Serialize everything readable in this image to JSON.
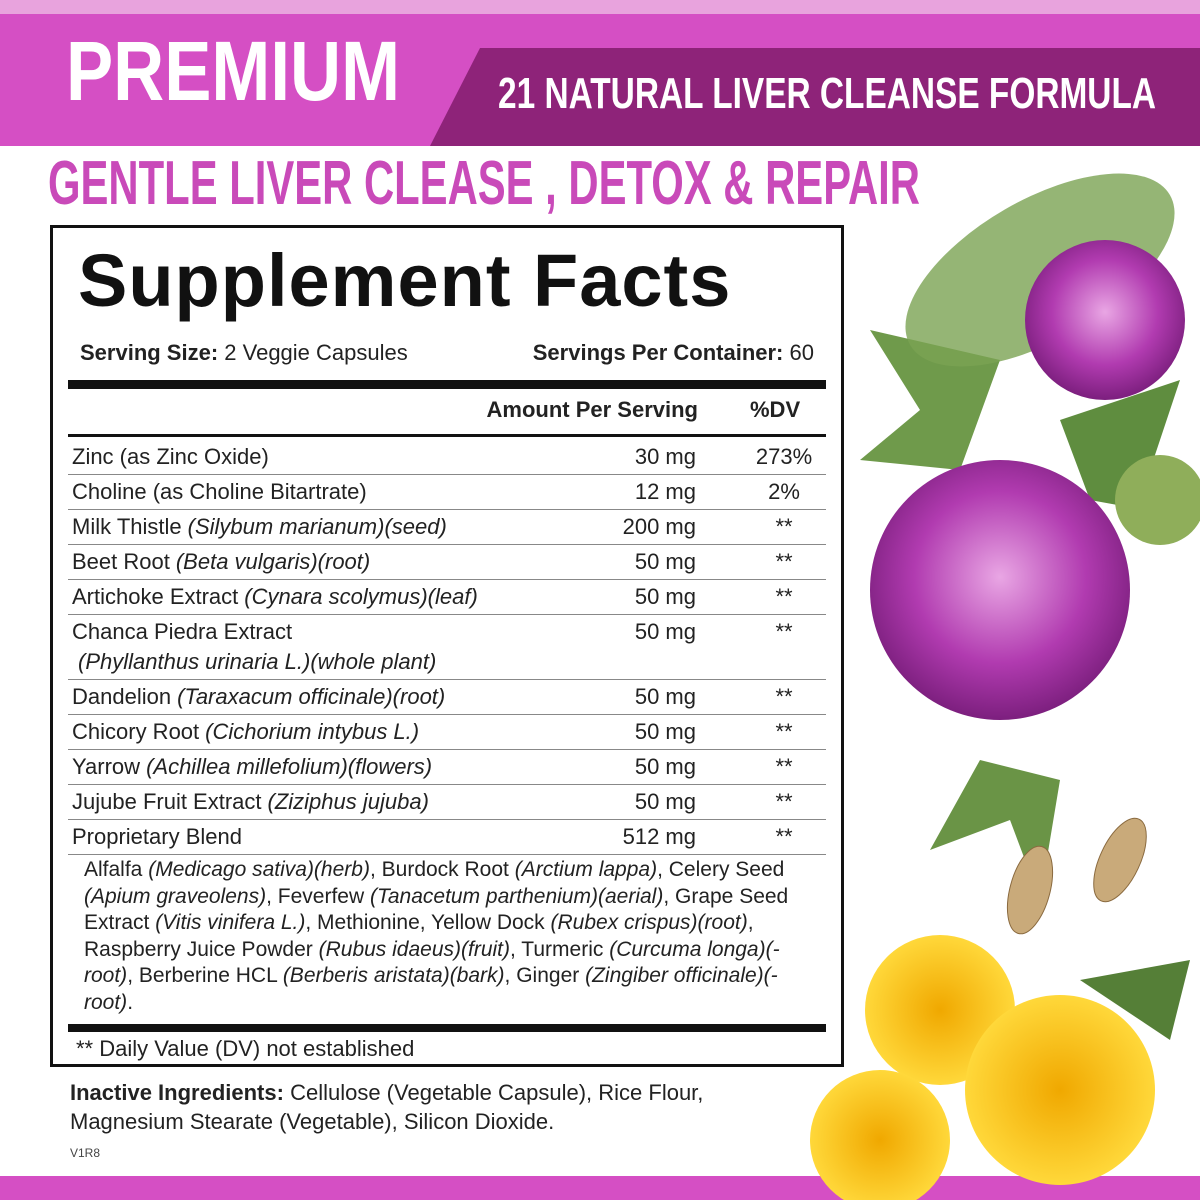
{
  "header": {
    "badge": "PREMIUM",
    "banner": "21 NATURAL LIVER CLEANSE FORMULA",
    "headline": "GENTLE LIVER CLEASE , DETOX & REPAIR"
  },
  "facts": {
    "title": "Supplement Facts",
    "serving_size_label": "Serving Size:",
    "serving_size": "2 Veggie Capsules",
    "servings_label": "Servings Per Container:",
    "servings": "60",
    "amount_header": "Amount Per Serving",
    "dv_header": "%DV",
    "rows": [
      {
        "name": "Zinc (as Zinc Oxide)",
        "amount": "30 mg",
        "dv": "273%"
      },
      {
        "name": "Choline (as Choline Bitartrate)",
        "amount": "12 mg",
        "dv": "2%"
      },
      {
        "name": "Milk Thistle",
        "latin": "(Silybum marianum)(seed)",
        "amount": "200 mg",
        "dv": "**"
      },
      {
        "name": "Beet Root",
        "latin": "(Beta vulgaris)(root)",
        "amount": "50 mg",
        "dv": "**"
      },
      {
        "name": "Artichoke Extract",
        "latin": "(Cynara scolymus)(leaf)",
        "amount": "50 mg",
        "dv": "**"
      },
      {
        "name": "Chanca Piedra Extract",
        "latin": "(Phyllanthus urinaria L.)(whole plant)",
        "amount": "50 mg",
        "dv": "**"
      },
      {
        "name": "Dandelion",
        "latin": "(Taraxacum officinale)(root)",
        "amount": "50 mg",
        "dv": "**"
      },
      {
        "name": "Chicory Root",
        "latin": "(Cichorium intybus L.)",
        "amount": "50 mg",
        "dv": "**"
      },
      {
        "name": "Yarrow",
        "latin": "(Achillea millefolium)(flowers)",
        "amount": "50 mg",
        "dv": "**"
      },
      {
        "name": "Jujube Fruit Extract",
        "latin": "(Ziziphus jujuba)",
        "amount": "50 mg",
        "dv": "**"
      },
      {
        "name": "Proprietary Blend",
        "amount": "512 mg",
        "dv": "**"
      }
    ],
    "blend": [
      "Alfalfa ",
      "(Medicago sativa)(herb)",
      ", Burdock Root ",
      "(Arctium lappa)",
      ", Celery Seed ",
      "(Apium graveolens)",
      ", Feverfew ",
      "(Tanacetum parthenium)(aerial)",
      ", Grape Seed Extract ",
      "(Vitis vinifera L.)",
      ", Methionine, Yellow Dock ",
      "(Rubex crispus)(root)",
      ", Raspberry Juice Powder ",
      "(Rubus idaeus)(fruit)",
      ", Turmeric ",
      "(Curcuma longa)(-root)",
      ", Berberine HCL ",
      "(Berberis aristata)(bark)",
      ", Ginger ",
      "(Zingiber officinale)(-root)",
      "."
    ],
    "footnote": "** Daily Value (DV) not established"
  },
  "inactive": {
    "label": "Inactive Ingredients:",
    "text": "Cellulose (Vegetable Capsule), Rice Flour, Magnesium Stearate (Vegetable), Silicon Dioxide."
  },
  "code": "V1R8"
}
